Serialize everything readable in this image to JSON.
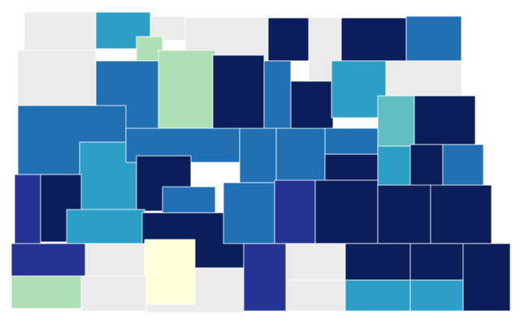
{
  "regions": [
    {
      "color": "#ebebeb"
    },
    {
      "color": "#2c9fc7"
    },
    {
      "color": "#ebebeb"
    },
    {
      "color": "#afdfb5"
    },
    {
      "color": "#ebebeb"
    },
    {
      "color": "#0b1e5b"
    },
    {
      "color": "#ebebeb"
    },
    {
      "color": "#0b1e5b"
    },
    {
      "color": "#2170b4"
    },
    {
      "color": "#ebebeb"
    },
    {
      "color": "#2170b4"
    },
    {
      "color": "#afdfb5"
    },
    {
      "color": "#0b1e5b"
    },
    {
      "color": "#2170b4"
    },
    {
      "color": "#0b1e5b"
    },
    {
      "color": "#2c9fc7"
    },
    {
      "color": "#ebebeb"
    },
    {
      "color": "#62bfbf"
    },
    {
      "color": "#0b1e5b"
    },
    {
      "color": "#2170b4"
    },
    {
      "color": "#2c9fc7"
    },
    {
      "color": "#2170b4"
    },
    {
      "color": "#0b1e5b"
    },
    {
      "color": "#2170b4"
    },
    {
      "color": "#2170b4"
    },
    {
      "color": "#2170b4"
    },
    {
      "color": "#0b1e5b"
    },
    {
      "color": "#2c9fc7"
    },
    {
      "color": "#0b1e5b"
    },
    {
      "color": "#2170b4"
    },
    {
      "color": "#253494"
    },
    {
      "color": "#0b1e5b"
    },
    {
      "color": "#2c9fc7"
    },
    {
      "color": "#0b1e5b"
    },
    {
      "color": "#2170b4"
    },
    {
      "color": "#2170b4"
    },
    {
      "color": "#253494"
    },
    {
      "color": "#0b1e5b"
    },
    {
      "color": "#0b1e5b"
    },
    {
      "color": "#0b1e5b"
    },
    {
      "color": "#253494"
    },
    {
      "color": "#ebebeb"
    },
    {
      "color": "#ebebeb"
    },
    {
      "color": "#ffffd9"
    },
    {
      "color": "#253494"
    },
    {
      "color": "#ebebeb"
    },
    {
      "color": "#ebebeb"
    },
    {
      "color": "#0b1e5b"
    },
    {
      "color": "#0b1e5b"
    },
    {
      "color": "#0b1e5b"
    },
    {
      "color": "#2c9fc7"
    },
    {
      "color": "#2c9fc7"
    },
    {
      "color": "#afdfb5"
    },
    {
      "color": "#ebebeb"
    }
  ]
}
